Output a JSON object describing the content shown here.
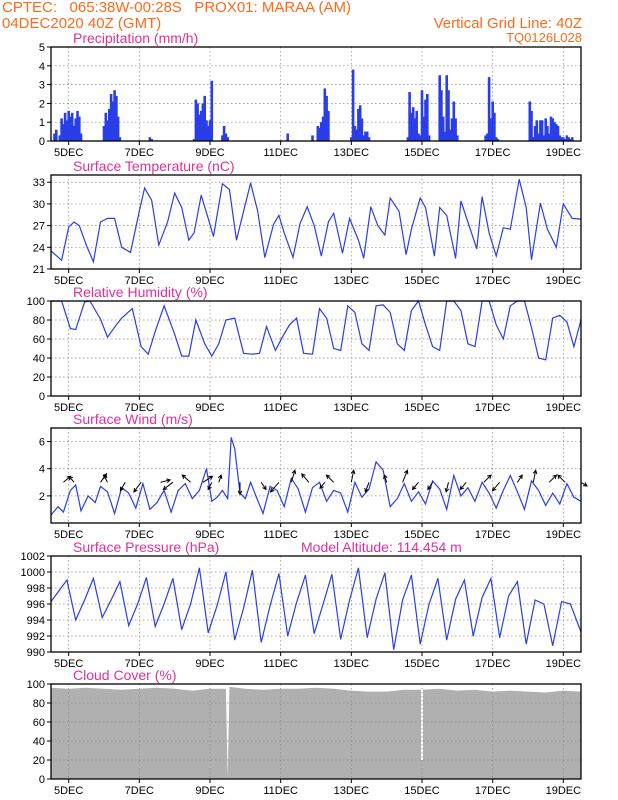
{
  "header": {
    "line1": "CPTEC:   065:38W-00:28S   PROX01: MARAA (AM)",
    "line2": "04DEC2020 40Z (GMT)",
    "right1": "Vertical Grid Line: 40Z",
    "right2": "TQ0126L028"
  },
  "colors": {
    "header": "#ff6a1a",
    "title": "#e0309a",
    "series": "#2a3ee8",
    "cloud": "#b0b0b0",
    "grid": "#888888",
    "arrow": "#000000"
  },
  "chart_data": [
    {
      "id": "precip",
      "type": "bar",
      "title": "Precipitation (mm/h)",
      "ylim": [
        0,
        5
      ],
      "yticks": [
        0,
        1,
        2,
        3,
        4,
        5
      ],
      "xlim": [
        0,
        15
      ],
      "xticks": [
        0.5,
        2.5,
        4.5,
        6.5,
        8.5,
        10.5,
        12.5,
        14.5
      ],
      "xticklabels": [
        "5DEC",
        "7DEC",
        "9DEC",
        "11DEC",
        "13DEC",
        "15DEC",
        "17DEC",
        "19DEC"
      ],
      "x": [
        0.1,
        0.15,
        0.25,
        0.3,
        0.35,
        0.4,
        0.45,
        0.5,
        0.55,
        0.6,
        0.65,
        0.7,
        0.75,
        0.8,
        0.85,
        1.5,
        1.55,
        1.6,
        1.65,
        1.7,
        1.75,
        1.8,
        1.85,
        1.9,
        1.95,
        2.8,
        2.85,
        4.05,
        4.1,
        4.15,
        4.2,
        4.25,
        4.3,
        4.35,
        4.4,
        4.45,
        4.5,
        4.55,
        4.85,
        4.9,
        4.95,
        5.0,
        6.7,
        7.4,
        7.55,
        7.6,
        7.65,
        7.7,
        7.75,
        7.8,
        7.85,
        8.5,
        8.55,
        8.6,
        8.65,
        8.7,
        8.75,
        8.8,
        8.85,
        8.9,
        8.95,
        9.0,
        10.1,
        10.15,
        10.2,
        10.25,
        10.3,
        10.35,
        10.4,
        10.45,
        10.5,
        10.55,
        10.6,
        10.65,
        10.7,
        11.0,
        11.05,
        11.1,
        11.15,
        11.2,
        11.25,
        11.3,
        11.35,
        11.4,
        11.45,
        11.5,
        12.3,
        12.35,
        12.4,
        12.45,
        12.5,
        12.55,
        12.6,
        12.65,
        13.55,
        13.6,
        13.65,
        13.7,
        13.75,
        13.8,
        13.85,
        13.9,
        13.95,
        14.0,
        14.05,
        14.1,
        14.15,
        14.2,
        14.25,
        14.3,
        14.35,
        14.4,
        14.45,
        14.5,
        14.55,
        14.6,
        14.65,
        14.7,
        14.75
      ],
      "values": [
        0.4,
        0.6,
        0.3,
        1.2,
        0.9,
        1.5,
        1.1,
        1.6,
        1.3,
        1.5,
        0.8,
        1.2,
        1.6,
        1.3,
        0.4,
        0.8,
        1.5,
        1.1,
        1.7,
        2.5,
        2.1,
        2.7,
        2.4,
        1.3,
        0.2,
        0.2,
        0.1,
        0.1,
        2.2,
        2.0,
        1.4,
        1.6,
        2.0,
        2.4,
        1.1,
        0.8,
        1.1,
        3.2,
        0.3,
        0.8,
        0.4,
        0.2,
        0.4,
        0.3,
        0.8,
        0.7,
        1.0,
        1.3,
        2.8,
        2.4,
        1.6,
        0.2,
        3.8,
        0.8,
        0.6,
        1.7,
        1.9,
        1.2,
        0.3,
        0.5,
        0.5,
        0.2,
        0.2,
        2.6,
        1.5,
        1.8,
        1.2,
        1.6,
        0.4,
        0.3,
        2.7,
        1.3,
        2.2,
        2.5,
        0.3,
        3.5,
        2.7,
        1.3,
        0.5,
        3.5,
        2.7,
        0.6,
        1.2,
        2.1,
        1.2,
        0.3,
        0.3,
        0.4,
        3.4,
        1.2,
        2.1,
        1.5,
        0.2,
        0.1,
        2.1,
        1.6,
        0.2,
        0.8,
        1.1,
        0.4,
        1.1,
        1.1,
        0.3,
        1.2,
        0.8,
        0.4,
        1.3,
        1.2,
        1.0,
        0.9,
        0.8,
        0.3,
        0.2,
        0.2,
        0.1,
        0.3,
        0.2,
        0.1,
        0.2
      ]
    },
    {
      "id": "temp",
      "type": "line",
      "title": "Surface Temperature (nC)",
      "ylim": [
        21,
        34
      ],
      "yticks": [
        21,
        24,
        27,
        30,
        33
      ],
      "xlim": [
        0,
        15
      ],
      "xticks": [
        0.5,
        2.5,
        4.5,
        6.5,
        8.5,
        10.5,
        12.5,
        14.5
      ],
      "xticklabels": [
        "5DEC",
        "7DEC",
        "9DEC",
        "11DEC",
        "13DEC",
        "15DEC",
        "17DEC",
        "19DEC"
      ],
      "x": [
        0.0,
        0.3,
        0.5,
        0.65,
        0.8,
        1.0,
        1.2,
        1.4,
        1.6,
        1.8,
        2.0,
        2.25,
        2.5,
        2.65,
        2.85,
        3.05,
        3.3,
        3.5,
        3.7,
        3.9,
        4.05,
        4.25,
        4.45,
        4.6,
        4.85,
        5.05,
        5.25,
        5.45,
        5.65,
        5.85,
        6.05,
        6.3,
        6.45,
        6.6,
        6.85,
        7.05,
        7.25,
        7.45,
        7.65,
        7.85,
        8.0,
        8.25,
        8.45,
        8.7,
        8.85,
        9.05,
        9.25,
        9.45,
        9.6,
        9.85,
        10.05,
        10.2,
        10.45,
        10.6,
        10.85,
        11.0,
        11.2,
        11.45,
        11.6,
        11.8,
        12.05,
        12.2,
        12.4,
        12.6,
        12.8,
        13.0,
        13.25,
        13.45,
        13.6,
        13.85,
        14.05,
        14.3,
        14.5,
        14.75,
        15.0
      ],
      "values": [
        23.5,
        22.2,
        26.8,
        27.5,
        27.0,
        24.3,
        22.0,
        27.5,
        28.0,
        28.0,
        24.0,
        23.3,
        29.0,
        32.2,
        30.5,
        24.3,
        27.5,
        31.5,
        29.5,
        25.0,
        26.0,
        31.2,
        28.0,
        25.5,
        32.8,
        32.0,
        25.0,
        29.0,
        32.9,
        29.0,
        22.6,
        27.2,
        28.4,
        26.0,
        22.6,
        27.3,
        29.6,
        27.0,
        22.8,
        27.5,
        28.7,
        23.2,
        28.0,
        25.0,
        22.5,
        29.6,
        27.0,
        25.7,
        30.8,
        29.0,
        23.0,
        26.5,
        30.8,
        29.5,
        22.8,
        29.5,
        28.4,
        22.5,
        30.4,
        27.5,
        23.8,
        31.0,
        26.0,
        22.8,
        26.7,
        26.5,
        33.4,
        29.5,
        22.3,
        30.1,
        26.5,
        24.0,
        30.0,
        28.0,
        27.9
      ]
    },
    {
      "id": "rh",
      "type": "line",
      "title": "Relative Humidity (%)",
      "ylim": [
        0,
        100
      ],
      "yticks": [
        0,
        20,
        40,
        60,
        80,
        100
      ],
      "xlim": [
        0,
        15
      ],
      "xticks": [
        0.5,
        2.5,
        4.5,
        6.5,
        8.5,
        10.5,
        12.5,
        14.5
      ],
      "xticklabels": [
        "5DEC",
        "7DEC",
        "9DEC",
        "11DEC",
        "13DEC",
        "15DEC",
        "17DEC",
        "19DEC"
      ],
      "x": [
        0.0,
        0.3,
        0.55,
        0.7,
        0.95,
        1.1,
        1.4,
        1.6,
        1.85,
        2.0,
        2.3,
        2.55,
        2.75,
        2.95,
        3.2,
        3.5,
        3.7,
        3.9,
        4.1,
        4.35,
        4.55,
        4.75,
        4.95,
        5.2,
        5.45,
        5.7,
        5.9,
        6.1,
        6.35,
        6.55,
        6.75,
        6.95,
        7.15,
        7.4,
        7.6,
        7.8,
        8.0,
        8.2,
        8.4,
        8.6,
        8.8,
        9.0,
        9.2,
        9.4,
        9.6,
        9.8,
        10.0,
        10.2,
        10.4,
        10.6,
        10.8,
        11.0,
        11.2,
        11.4,
        11.6,
        11.8,
        12.0,
        12.2,
        12.4,
        12.6,
        12.8,
        13.0,
        13.2,
        13.4,
        13.6,
        13.8,
        14.0,
        14.2,
        14.4,
        14.6,
        14.8,
        15.0
      ],
      "values": [
        100,
        100,
        71,
        70,
        99,
        100,
        81,
        62,
        75,
        82,
        92,
        52,
        44,
        68,
        95,
        65,
        42,
        42,
        80,
        55,
        42,
        55,
        80,
        82,
        45,
        44,
        45,
        73,
        48,
        62,
        75,
        82,
        45,
        44,
        92,
        82,
        50,
        48,
        95,
        88,
        55,
        48,
        95,
        96,
        88,
        55,
        48,
        90,
        100,
        75,
        52,
        48,
        100,
        100,
        90,
        55,
        52,
        100,
        100,
        75,
        60,
        95,
        100,
        100,
        72,
        40,
        38,
        82,
        85,
        78,
        52,
        80
      ]
    },
    {
      "id": "wind",
      "type": "line",
      "title": "Surface Wind (m/s)",
      "ylim": [
        0,
        7
      ],
      "yticks": [
        2,
        4,
        6
      ],
      "xlim": [
        0,
        15
      ],
      "xticks": [
        0.5,
        2.5,
        4.5,
        6.5,
        8.5,
        10.5,
        12.5,
        14.5
      ],
      "xticklabels": [
        "5DEC",
        "7DEC",
        "9DEC",
        "11DEC",
        "13DEC",
        "15DEC",
        "17DEC",
        "19DEC"
      ],
      "x": [
        0.0,
        0.2,
        0.35,
        0.55,
        0.7,
        0.85,
        1.05,
        1.25,
        1.4,
        1.6,
        1.8,
        2.0,
        2.2,
        2.4,
        2.6,
        2.8,
        3.0,
        3.2,
        3.4,
        3.6,
        3.8,
        4.0,
        4.2,
        4.4,
        4.55,
        4.7,
        4.85,
        5.0,
        5.1,
        5.2,
        5.35,
        5.5,
        5.65,
        5.8,
        6.0,
        6.2,
        6.4,
        6.6,
        6.8,
        7.0,
        7.2,
        7.4,
        7.6,
        7.8,
        8.0,
        8.2,
        8.4,
        8.6,
        8.8,
        9.0,
        9.2,
        9.4,
        9.6,
        9.8,
        10.0,
        10.2,
        10.4,
        10.6,
        10.8,
        11.0,
        11.2,
        11.4,
        11.6,
        11.8,
        12.0,
        12.2,
        12.4,
        12.6,
        12.8,
        13.0,
        13.2,
        13.4,
        13.6,
        13.8,
        14.0,
        14.2,
        14.4,
        14.6,
        14.8,
        15.0
      ],
      "values": [
        0.6,
        1.2,
        0.8,
        2.4,
        2.8,
        0.9,
        2.0,
        1.5,
        2.7,
        2.3,
        0.7,
        2.6,
        2.2,
        1.1,
        2.9,
        1.0,
        1.5,
        2.4,
        0.8,
        2.4,
        2.9,
        1.8,
        2.4,
        4.0,
        1.6,
        1.9,
        2.4,
        1.8,
        6.3,
        5.5,
        2.2,
        1.8,
        3.0,
        2.0,
        0.7,
        2.7,
        2.4,
        1.2,
        3.3,
        2.5,
        0.8,
        2.6,
        3.0,
        1.6,
        2.4,
        2.2,
        0.8,
        3.0,
        1.9,
        2.5,
        4.5,
        3.9,
        1.2,
        1.8,
        2.9,
        1.6,
        2.3,
        1.4,
        3.1,
        2.5,
        1.0,
        3.5,
        2.0,
        2.6,
        1.6,
        3.0,
        2.2,
        1.1,
        2.4,
        3.5,
        2.3,
        1.0,
        3.1,
        2.4,
        1.3,
        2.2,
        1.4,
        2.9,
        1.9,
        1.6
      ],
      "arrows": {
        "x": [
          0.35,
          0.65,
          1.4,
          1.6,
          2.1,
          2.55,
          3.1,
          3.45,
          3.95,
          4.3,
          4.55,
          4.75,
          5.35,
          5.95,
          6.45,
          6.8,
          7.3,
          7.75,
          8.0,
          8.5,
          9.0,
          9.5,
          9.95,
          10.4,
          10.8,
          11.25,
          11.75,
          12.25,
          12.7,
          13.2,
          13.65,
          14.1,
          14.55,
          15.0
        ],
        "u": [
          0.6,
          -0.4,
          0.5,
          -0.3,
          -0.4,
          -0.6,
          0.8,
          -0.8,
          -0.7,
          0.8,
          -0.3,
          0.2,
          0.0,
          0.4,
          -0.7,
          0.3,
          -0.6,
          -0.4,
          -0.6,
          0.2,
          -0.3,
          -0.2,
          0.4,
          -0.5,
          -0.4,
          -0.2,
          -0.5,
          0.6,
          -0.6,
          0.4,
          0.2,
          0.6,
          -0.6,
          0.5
        ],
        "v": [
          0.5,
          0.5,
          0.7,
          0.6,
          -0.7,
          -0.8,
          0.2,
          -0.6,
          0.6,
          0.5,
          -0.6,
          0.6,
          -1.0,
          -0.6,
          -0.8,
          1.0,
          0.7,
          -0.5,
          0.6,
          1.0,
          -0.8,
          0.6,
          1.0,
          -0.6,
          -0.6,
          -0.8,
          -0.6,
          0.6,
          -0.7,
          0.6,
          1.0,
          0.6,
          0.6,
          -0.3
        ]
      }
    },
    {
      "id": "press",
      "type": "line",
      "title": "Surface Pressure (hPa)",
      "annotation": "Model Altitude: 114.454 m",
      "ylim": [
        990,
        1002
      ],
      "yticks": [
        990,
        992,
        994,
        996,
        998,
        1000,
        1002
      ],
      "xlim": [
        0,
        15
      ],
      "xticks": [
        0.5,
        2.5,
        4.5,
        6.5,
        8.5,
        10.5,
        12.5,
        14.5
      ],
      "xticklabels": [
        "5DEC",
        "7DEC",
        "9DEC",
        "11DEC",
        "13DEC",
        "15DEC",
        "17DEC",
        "19DEC"
      ],
      "x": [
        0.0,
        0.2,
        0.45,
        0.7,
        0.95,
        1.2,
        1.45,
        1.7,
        1.95,
        2.2,
        2.45,
        2.7,
        2.95,
        3.2,
        3.45,
        3.7,
        3.95,
        4.2,
        4.45,
        4.7,
        4.95,
        5.2,
        5.45,
        5.7,
        5.95,
        6.2,
        6.45,
        6.7,
        6.95,
        7.2,
        7.45,
        7.7,
        7.95,
        8.2,
        8.45,
        8.7,
        8.95,
        9.2,
        9.45,
        9.7,
        9.95,
        10.2,
        10.45,
        10.7,
        10.95,
        11.2,
        11.45,
        11.7,
        11.95,
        12.2,
        12.45,
        12.7,
        12.95,
        13.2,
        13.45,
        13.7,
        13.95,
        14.2,
        14.45,
        14.7,
        15.0
      ],
      "values": [
        996.3,
        997.5,
        999.0,
        994.0,
        996.5,
        999.2,
        994.3,
        996.5,
        998.8,
        993.3,
        996.0,
        999.3,
        993.2,
        996.0,
        999.2,
        992.8,
        996.0,
        1000.5,
        992.4,
        995.8,
        1000.0,
        991.5,
        995.5,
        1000.2,
        991.2,
        995.8,
        999.8,
        992.0,
        996.2,
        999.6,
        992.3,
        996.0,
        999.7,
        991.6,
        996.5,
        1000.5,
        991.8,
        996.6,
        999.9,
        990.3,
        996.5,
        999.6,
        991.0,
        996.0,
        999.2,
        991.5,
        996.6,
        999.0,
        992.0,
        996.8,
        999.2,
        991.8,
        997.0,
        998.8,
        991.0,
        996.5,
        996.0,
        990.8,
        996.3,
        996.0,
        992.5
      ]
    },
    {
      "id": "cloud",
      "type": "area",
      "title": "Cloud Cover (%)",
      "ylim": [
        0,
        100
      ],
      "yticks": [
        0,
        20,
        40,
        60,
        80,
        100
      ],
      "xlim": [
        0,
        15
      ],
      "xticks": [
        0.5,
        2.5,
        4.5,
        6.5,
        8.5,
        10.5,
        12.5,
        14.5
      ],
      "xticklabels": [
        "5DEC",
        "7DEC",
        "9DEC",
        "11DEC",
        "13DEC",
        "15DEC",
        "17DEC",
        "19DEC"
      ],
      "x": [
        0.0,
        0.5,
        1.0,
        1.5,
        2.0,
        2.5,
        3.0,
        3.5,
        4.0,
        4.5,
        4.95,
        5.0,
        5.05,
        5.5,
        6.0,
        6.5,
        7.0,
        7.5,
        8.0,
        8.5,
        9.0,
        9.5,
        10.0,
        10.5,
        11.0,
        11.5,
        12.0,
        12.5,
        13.0,
        13.5,
        14.0,
        14.5,
        15.0
      ],
      "values": [
        96,
        95,
        96,
        95,
        94,
        95,
        96,
        95,
        93,
        95,
        95,
        0,
        97,
        95,
        94,
        95,
        95,
        96,
        95,
        93,
        92,
        92,
        94,
        94,
        95,
        93,
        94,
        92,
        93,
        92,
        91,
        93,
        92
      ],
      "gaps": [
        {
          "x": 10.5,
          "value": 20
        }
      ]
    }
  ]
}
